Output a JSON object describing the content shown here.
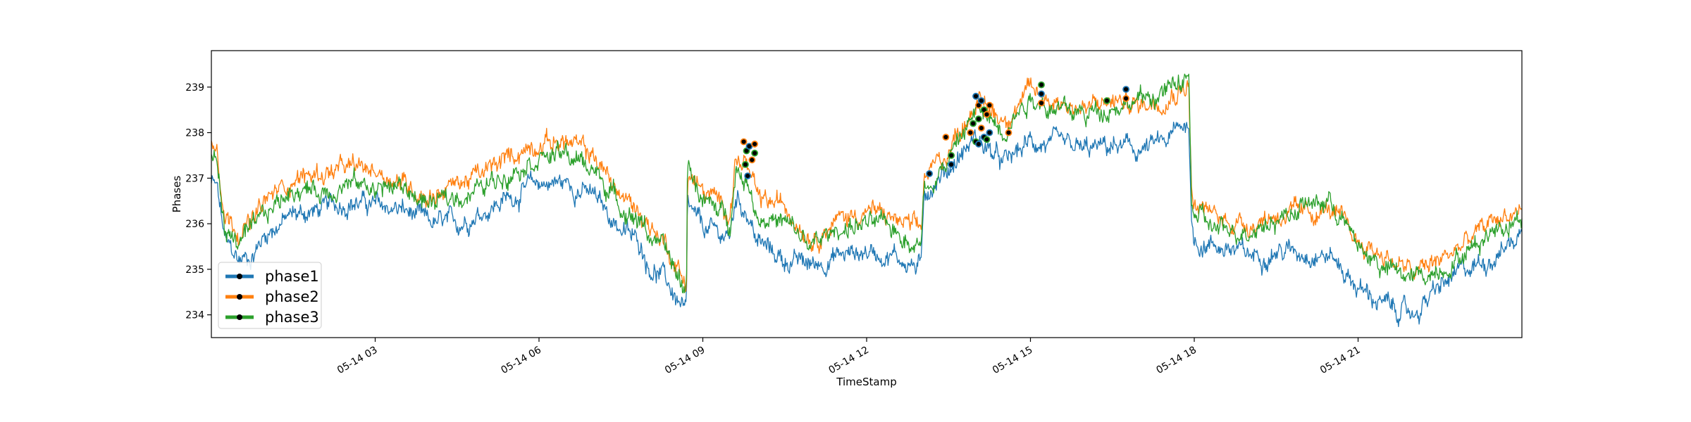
{
  "chart_data": {
    "type": "line",
    "xlabel": "TimeStamp",
    "ylabel": "Phases",
    "x_range": [
      "05-14 00:00",
      "05-15 00:00"
    ],
    "ylim": [
      233.5,
      239.8
    ],
    "x_ticks": [
      {
        "label": "05-14 03",
        "hour": 3
      },
      {
        "label": "05-14 06",
        "hour": 6
      },
      {
        "label": "05-14 09",
        "hour": 9
      },
      {
        "label": "05-14 12",
        "hour": 12
      },
      {
        "label": "05-14 15",
        "hour": 15
      },
      {
        "label": "05-14 18",
        "hour": 18
      },
      {
        "label": "05-14 21",
        "hour": 21
      }
    ],
    "y_ticks": [
      234,
      235,
      236,
      237,
      238,
      239
    ],
    "grid": false,
    "legend": {
      "placement": "bottom-left",
      "markers": true
    },
    "series": [
      {
        "name": "phase1",
        "color": "#1f77b4",
        "x": [
          0,
          0.1,
          0.25,
          0.5,
          0.75,
          1,
          1.5,
          2,
          2.5,
          3,
          3.5,
          4,
          4.5,
          5,
          5.5,
          6,
          6.5,
          7,
          7.5,
          7.9,
          8,
          8.3,
          8.6,
          8.7,
          8.72,
          9,
          9.5,
          9.6,
          9.8,
          10,
          10.5,
          11,
          11.5,
          12,
          12.5,
          13,
          13.05,
          13.5,
          14,
          14.5,
          15,
          15.5,
          16,
          16.5,
          17,
          17.5,
          17.9,
          17.95,
          18,
          18.5,
          19,
          19.5,
          20,
          20.5,
          21,
          21.5,
          22,
          22.5,
          23,
          23.5,
          24
        ],
        "y": [
          236.9,
          236.8,
          235.6,
          235.2,
          235.3,
          235.8,
          236.2,
          236.3,
          236.5,
          236.4,
          236.3,
          236.0,
          236.0,
          236.3,
          236.6,
          236.9,
          236.9,
          236.6,
          235.9,
          235.5,
          235.1,
          234.8,
          234.2,
          234.0,
          236.3,
          235.9,
          235.7,
          236.6,
          236.3,
          235.6,
          235.2,
          235.1,
          235.3,
          235.4,
          235.3,
          235.0,
          236.7,
          237.2,
          237.9,
          237.3,
          237.8,
          237.7,
          237.6,
          237.7,
          237.6,
          237.8,
          238.3,
          236.0,
          235.6,
          235.5,
          235.3,
          235.4,
          235.4,
          235.3,
          234.6,
          234.2,
          234.0,
          234.6,
          235.0,
          235.3,
          235.8
        ]
      },
      {
        "name": "phase2",
        "color": "#ff7f0e",
        "x": [
          0,
          0.1,
          0.25,
          0.5,
          0.75,
          1,
          1.5,
          2,
          2.5,
          3,
          3.5,
          4,
          4.5,
          5,
          5.5,
          6,
          6.5,
          7,
          7.5,
          7.9,
          8,
          8.3,
          8.6,
          8.7,
          8.72,
          9,
          9.5,
          9.6,
          9.8,
          10,
          10.5,
          11,
          11.5,
          12,
          12.5,
          13,
          13.05,
          13.5,
          14,
          14.5,
          15,
          15.5,
          16,
          16.5,
          17,
          17.5,
          17.9,
          17.95,
          18,
          18.5,
          19,
          19.5,
          20,
          20.5,
          21,
          21.5,
          22,
          22.5,
          23,
          23.5,
          24
        ],
        "y": [
          237.9,
          237.8,
          236.2,
          235.9,
          236.0,
          236.5,
          237.0,
          237.1,
          237.2,
          237.2,
          236.9,
          236.6,
          236.9,
          237.1,
          237.5,
          237.8,
          237.8,
          237.5,
          236.6,
          236.2,
          236.0,
          235.6,
          234.9,
          234.6,
          237.1,
          236.7,
          236.3,
          237.4,
          237.3,
          236.5,
          236.4,
          235.7,
          236.1,
          236.3,
          236.1,
          235.8,
          237.0,
          237.6,
          238.7,
          238.3,
          238.9,
          238.7,
          238.5,
          238.7,
          238.6,
          238.8,
          239.1,
          236.7,
          236.4,
          236.1,
          236.0,
          236.2,
          236.2,
          236.3,
          235.6,
          235.3,
          234.9,
          235.2,
          235.6,
          236.1,
          236.3
        ]
      },
      {
        "name": "phase3",
        "color": "#2ca02c",
        "x": [
          0,
          0.1,
          0.25,
          0.5,
          0.75,
          1,
          1.5,
          2,
          2.5,
          3,
          3.5,
          4,
          4.5,
          5,
          5.5,
          6,
          6.5,
          7,
          7.5,
          7.9,
          8,
          8.3,
          8.6,
          8.7,
          8.72,
          9,
          9.5,
          9.6,
          9.8,
          10,
          10.5,
          11,
          11.5,
          12,
          12.5,
          13,
          13.05,
          13.5,
          14,
          14.5,
          15,
          15.5,
          16,
          16.5,
          17,
          17.5,
          17.9,
          17.95,
          18,
          18.5,
          19,
          19.5,
          20,
          20.5,
          21,
          21.5,
          22,
          22.5,
          23,
          23.5,
          24
        ],
        "y": [
          237.5,
          237.4,
          235.8,
          235.6,
          235.8,
          236.2,
          236.8,
          236.7,
          236.9,
          236.8,
          236.8,
          236.4,
          236.6,
          236.8,
          237.2,
          237.5,
          237.5,
          237.2,
          236.4,
          236.0,
          235.8,
          235.4,
          234.7,
          234.5,
          237.4,
          236.5,
          236.1,
          237.2,
          237.0,
          236.2,
          236.0,
          235.5,
          235.9,
          236.0,
          235.9,
          235.5,
          236.8,
          237.4,
          238.5,
          238.1,
          238.8,
          238.5,
          238.4,
          238.6,
          238.7,
          238.9,
          239.2,
          236.5,
          236.2,
          235.8,
          235.9,
          236.1,
          236.4,
          236.5,
          235.5,
          235.0,
          234.8,
          235.0,
          235.4,
          235.9,
          236.2
        ]
      }
    ],
    "markers": [
      {
        "x": 9.75,
        "y": 237.8
      },
      {
        "x": 9.8,
        "y": 237.6
      },
      {
        "x": 9.85,
        "y": 237.7
      },
      {
        "x": 9.9,
        "y": 237.4
      },
      {
        "x": 9.78,
        "y": 237.3
      },
      {
        "x": 9.82,
        "y": 237.05
      },
      {
        "x": 9.95,
        "y": 237.75
      },
      {
        "x": 9.95,
        "y": 237.55
      },
      {
        "x": 13.15,
        "y": 237.1
      },
      {
        "x": 13.45,
        "y": 237.9
      },
      {
        "x": 13.55,
        "y": 237.5
      },
      {
        "x": 13.55,
        "y": 237.3
      },
      {
        "x": 13.9,
        "y": 238.0
      },
      {
        "x": 13.95,
        "y": 238.2
      },
      {
        "x": 14.0,
        "y": 238.8
      },
      {
        "x": 14.05,
        "y": 238.6
      },
      {
        "x": 14.05,
        "y": 238.3
      },
      {
        "x": 14.1,
        "y": 238.7
      },
      {
        "x": 14.1,
        "y": 238.1
      },
      {
        "x": 14.15,
        "y": 238.5
      },
      {
        "x": 14.15,
        "y": 237.9
      },
      {
        "x": 14.2,
        "y": 238.4
      },
      {
        "x": 14.2,
        "y": 237.85
      },
      {
        "x": 14.25,
        "y": 238.0
      },
      {
        "x": 14.25,
        "y": 238.6
      },
      {
        "x": 14.0,
        "y": 237.8
      },
      {
        "x": 14.05,
        "y": 237.75
      },
      {
        "x": 14.6,
        "y": 238.0
      },
      {
        "x": 15.2,
        "y": 239.05
      },
      {
        "x": 15.2,
        "y": 238.85
      },
      {
        "x": 15.2,
        "y": 238.65
      },
      {
        "x": 16.4,
        "y": 238.7
      },
      {
        "x": 16.75,
        "y": 238.95
      },
      {
        "x": 16.75,
        "y": 238.75
      }
    ]
  }
}
